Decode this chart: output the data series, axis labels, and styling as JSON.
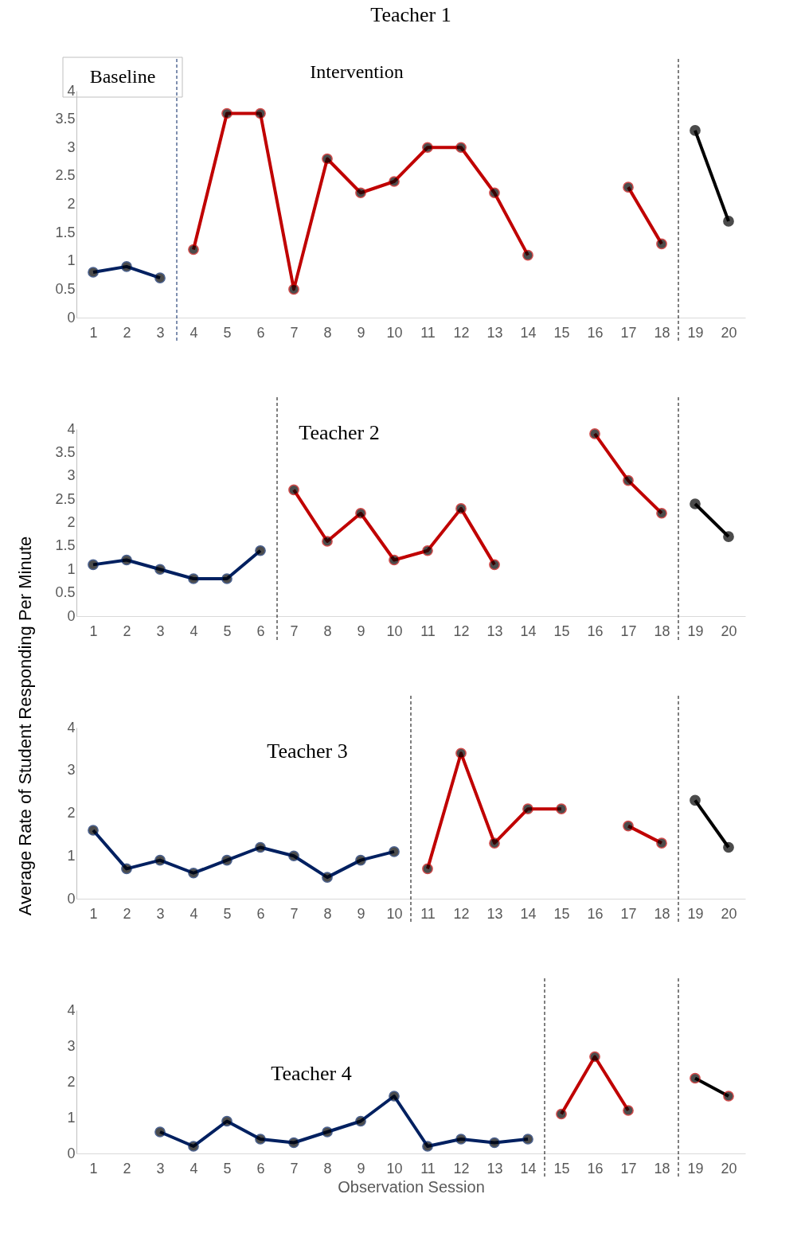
{
  "chart_data": [
    {
      "type": "line",
      "title": "Teacher 1",
      "annotations": [
        "Baseline",
        "Intervention"
      ],
      "x": [
        1,
        2,
        3,
        4,
        5,
        6,
        7,
        8,
        9,
        10,
        11,
        12,
        13,
        14,
        15,
        16,
        17,
        18,
        19,
        20
      ],
      "xlim": [
        0.5,
        20.5
      ],
      "xticks": [
        1,
        2,
        3,
        4,
        5,
        6,
        7,
        8,
        9,
        10,
        11,
        12,
        13,
        14,
        15,
        16,
        17,
        18,
        19,
        20
      ],
      "ylim": [
        0,
        4
      ],
      "yticks": [
        0,
        0.5,
        1,
        1.5,
        2,
        2.5,
        3,
        3.5,
        4
      ],
      "grid": false,
      "legend": false,
      "marker": "circle",
      "line_style": "solid",
      "series": [
        {
          "color": "#002060",
          "values": [
            0.8,
            0.9,
            0.7,
            null,
            null,
            null,
            null,
            null,
            null,
            null,
            null,
            null,
            null,
            null,
            null,
            null,
            null,
            null,
            null,
            null
          ]
        },
        {
          "color": "#c00000",
          "values": [
            null,
            null,
            null,
            1.2,
            3.6,
            3.6,
            0.5,
            2.8,
            2.2,
            2.4,
            3,
            3,
            2.2,
            1.1,
            null,
            null,
            2.3,
            1.3,
            null,
            null
          ]
        },
        {
          "color": "#000000",
          "values": [
            null,
            null,
            null,
            null,
            null,
            null,
            null,
            null,
            null,
            null,
            null,
            null,
            null,
            null,
            null,
            null,
            null,
            null,
            3.3,
            1.7
          ]
        }
      ],
      "ref_lines": [
        {
          "axis": "x",
          "value": 3.5,
          "color": "#002060",
          "line_style": "dashed"
        },
        {
          "axis": "x",
          "value": 18.5,
          "color": "#000000",
          "line_style": "dashed"
        }
      ]
    },
    {
      "type": "line",
      "title": "Teacher 2",
      "x": [
        1,
        2,
        3,
        4,
        5,
        6,
        7,
        8,
        9,
        10,
        11,
        12,
        13,
        14,
        15,
        16,
        17,
        18,
        19,
        20
      ],
      "xlim": [
        0.5,
        20.5
      ],
      "xticks": [
        1,
        2,
        3,
        4,
        5,
        6,
        7,
        8,
        9,
        10,
        11,
        12,
        13,
        14,
        15,
        16,
        17,
        18,
        19,
        20
      ],
      "ylim": [
        0,
        4
      ],
      "yticks": [
        0,
        0.5,
        1,
        1.5,
        2,
        2.5,
        3,
        3.5,
        4
      ],
      "grid": false,
      "legend": false,
      "marker": "circle",
      "line_style": "solid",
      "series": [
        {
          "color": "#002060",
          "values": [
            1.1,
            1.2,
            1.0,
            0.8,
            0.8,
            1.4,
            null,
            null,
            null,
            null,
            null,
            null,
            null,
            null,
            null,
            null,
            null,
            null,
            null,
            null
          ]
        },
        {
          "color": "#c00000",
          "values": [
            null,
            null,
            null,
            null,
            null,
            null,
            2.7,
            1.6,
            2.2,
            1.2,
            1.4,
            2.3,
            1.1,
            null,
            null,
            3.9,
            2.9,
            2.2,
            null,
            null
          ]
        },
        {
          "color": "#000000",
          "values": [
            null,
            null,
            null,
            null,
            null,
            null,
            null,
            null,
            null,
            null,
            null,
            null,
            null,
            null,
            null,
            null,
            null,
            null,
            2.4,
            1.7
          ]
        }
      ],
      "ref_lines": [
        {
          "axis": "x",
          "value": 6.5,
          "color": "#000000",
          "line_style": "dashed"
        },
        {
          "axis": "x",
          "value": 18.5,
          "color": "#000000",
          "line_style": "dashed"
        }
      ]
    },
    {
      "type": "line",
      "title": "Teacher 3",
      "ylabel": "Average Rate of Student Responding Per Minute",
      "x": [
        1,
        2,
        3,
        4,
        5,
        6,
        7,
        8,
        9,
        10,
        11,
        12,
        13,
        14,
        15,
        16,
        17,
        18,
        19,
        20
      ],
      "xlim": [
        0.5,
        20.5
      ],
      "xticks": [
        1,
        2,
        3,
        4,
        5,
        6,
        7,
        8,
        9,
        10,
        11,
        12,
        13,
        14,
        15,
        16,
        17,
        18,
        19,
        20
      ],
      "ylim": [
        0,
        4
      ],
      "yticks": [
        0,
        1,
        2,
        3,
        4
      ],
      "grid": false,
      "legend": false,
      "marker": "circle",
      "line_style": "solid",
      "series": [
        {
          "color": "#002060",
          "values": [
            1.6,
            0.7,
            0.9,
            0.6,
            0.9,
            1.2,
            1.0,
            0.5,
            0.9,
            1.1,
            null,
            null,
            null,
            null,
            null,
            null,
            null,
            null,
            null,
            null
          ]
        },
        {
          "color": "#c00000",
          "values": [
            null,
            null,
            null,
            null,
            null,
            null,
            null,
            null,
            null,
            null,
            0.7,
            3.4,
            1.3,
            2.1,
            2.1,
            null,
            1.7,
            1.3,
            null,
            null
          ]
        },
        {
          "color": "#000000",
          "values": [
            null,
            null,
            null,
            null,
            null,
            null,
            null,
            null,
            null,
            null,
            null,
            null,
            null,
            null,
            null,
            null,
            null,
            null,
            2.3,
            1.2
          ]
        }
      ],
      "ref_lines": [
        {
          "axis": "x",
          "value": 10.5,
          "color": "#000000",
          "line_style": "dashed"
        },
        {
          "axis": "x",
          "value": 18.5,
          "color": "#000000",
          "line_style": "dashed"
        }
      ]
    },
    {
      "type": "line",
      "title": "Teacher 4",
      "xlabel": "Observation Session",
      "xlim": [
        0.5,
        20.5
      ],
      "xticks": [
        1,
        2,
        3,
        4,
        5,
        6,
        7,
        8,
        9,
        10,
        11,
        12,
        13,
        14,
        15,
        16,
        17,
        18,
        19,
        20
      ],
      "ylim": [
        0,
        4
      ],
      "yticks": [
        0,
        1,
        2,
        3,
        4
      ],
      "grid": false,
      "legend": false,
      "marker": "circle",
      "line_style": "solid",
      "series": [
        {
          "color": "#002060",
          "x": [
            3,
            4,
            5,
            6,
            7,
            8,
            9,
            10,
            11,
            12,
            13,
            14
          ],
          "values": [
            0.6,
            0.2,
            0.9,
            0.4,
            0.3,
            0.6,
            0.9,
            1.6,
            0.2,
            0.4,
            0.3,
            0.4
          ]
        },
        {
          "color": "#c00000",
          "x": [
            15,
            16,
            17
          ],
          "values": [
            1.1,
            2.7,
            1.2
          ]
        },
        {
          "color": "#c00000",
          "x": [
            19,
            20
          ],
          "values": [
            2.1,
            1.6
          ]
        }
      ],
      "ref_lines": [
        {
          "axis": "x",
          "value": 14.5,
          "color": "#000000",
          "line_style": "dashed"
        },
        {
          "axis": "x",
          "value": 18.5,
          "color": "#000000",
          "line_style": "dashed"
        }
      ]
    }
  ]
}
